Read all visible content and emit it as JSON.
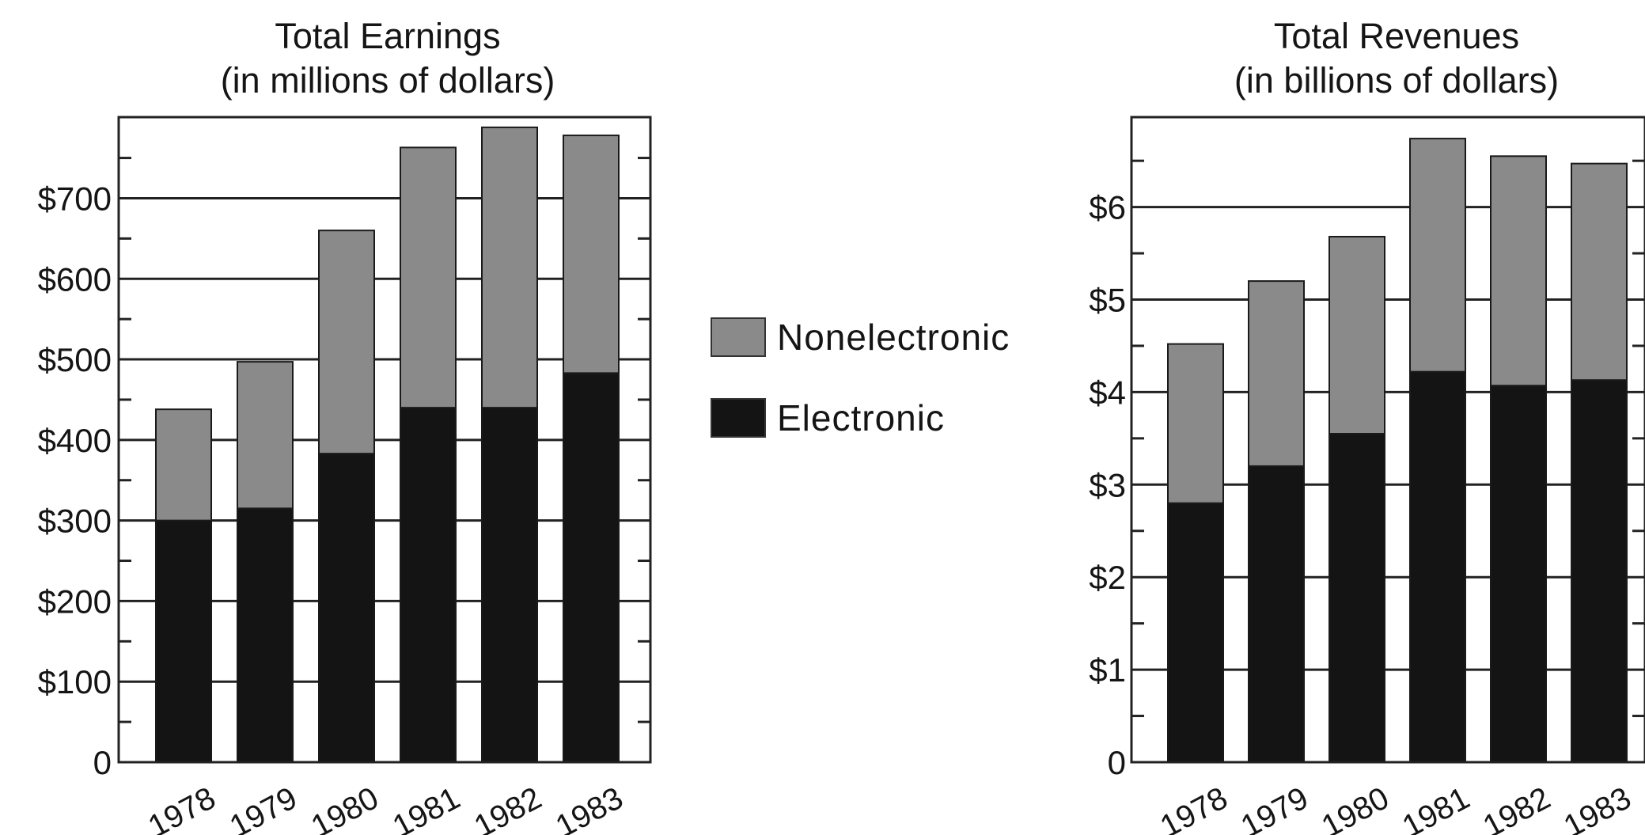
{
  "colors": {
    "nonelectronic": "#8a8a8a",
    "electronic": "#141414",
    "frame": "#222222"
  },
  "legend": [
    {
      "label": "Nonelectronic",
      "color": "#8a8a8a"
    },
    {
      "label": "Electronic",
      "color": "#141414"
    }
  ],
  "chart_data": [
    {
      "type": "bar",
      "stacked": true,
      "title": "Total Earnings",
      "subtitle": "(in millions of dollars)",
      "categories": [
        "1978",
        "1979",
        "1980",
        "1981",
        "1982",
        "1983"
      ],
      "series": [
        {
          "name": "Electronic",
          "values": [
            300,
            315,
            383,
            440,
            440,
            483
          ]
        },
        {
          "name": "Nonelectronic",
          "values": [
            138,
            182,
            277,
            323,
            348,
            295
          ]
        }
      ],
      "ylim": [
        0,
        800
      ],
      "yticks": [
        0,
        100,
        200,
        300,
        400,
        500,
        600,
        700
      ],
      "ytick_labels": [
        "0",
        "$100",
        "$200",
        "$300",
        "$400",
        "$500",
        "$600",
        "$700"
      ],
      "grid": true
    },
    {
      "type": "bar",
      "stacked": true,
      "title": "Total Revenues",
      "subtitle": "(in billions of dollars)",
      "categories": [
        "1978",
        "1979",
        "1980",
        "1981",
        "1982",
        "1983"
      ],
      "series": [
        {
          "name": "Electronic",
          "values": [
            2.8,
            3.2,
            3.55,
            4.22,
            4.07,
            4.13
          ]
        },
        {
          "name": "Nonelectronic",
          "values": [
            1.72,
            2.0,
            2.13,
            2.52,
            2.48,
            2.34
          ]
        }
      ],
      "ylim": [
        0,
        7
      ],
      "yticks": [
        0,
        1,
        2,
        3,
        4,
        5,
        6
      ],
      "ytick_labels": [
        "0",
        "$1",
        "$2",
        "$3",
        "$4",
        "$5",
        "$6"
      ],
      "grid": true
    }
  ]
}
